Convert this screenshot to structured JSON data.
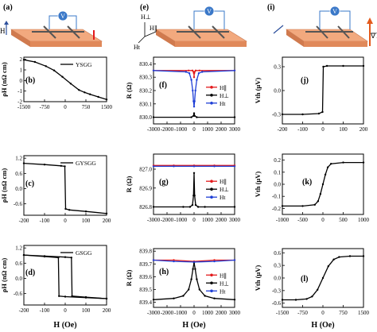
{
  "figure": {
    "panel_letters": [
      "(a)",
      "(b)",
      "(c)",
      "(d)",
      "(e)",
      "(f)",
      "(g)",
      "(h)",
      "(i)",
      "(j)",
      "(k)",
      "(l)"
    ],
    "diagrams": {
      "a": {
        "field_label": "H"
      },
      "e": {
        "field_labels": [
          "H⊥",
          "H∥",
          "Ht"
        ]
      },
      "i": {
        "gradient_label": "∇T"
      }
    },
    "xlabels": {
      "col1": "H (Oe)",
      "col2": "H (Oe)",
      "col3": "H (Oe)"
    }
  },
  "chart_data": [
    {
      "id": "b",
      "type": "line",
      "ylabel": "ρH (nΩ cm)",
      "xlim": [
        -1500,
        1500
      ],
      "ylim": [
        -2.0,
        2.2
      ],
      "xticks": [
        "-1500",
        "-750",
        "0",
        "750",
        "1500"
      ],
      "yticks": [
        "2",
        "1",
        "0",
        "-1",
        "-2"
      ],
      "legend": "top-right",
      "series": [
        {
          "name": "YSGG",
          "color": "#000000",
          "x": [
            -1500,
            -1100,
            -700,
            -400,
            -100,
            200,
            500,
            700,
            900,
            1200,
            1500
          ],
          "y": [
            1.95,
            1.75,
            1.35,
            0.95,
            0.35,
            -0.3,
            -0.9,
            -1.12,
            -1.3,
            -1.55,
            -1.8
          ]
        }
      ]
    },
    {
      "id": "c",
      "type": "line",
      "ylabel": "ρH (nΩ cm)",
      "xlim": [
        -200,
        200
      ],
      "ylim": [
        -1.05,
        1.3
      ],
      "xticks": [
        "-200",
        "-100",
        "0",
        "100",
        "200"
      ],
      "yticks": [
        "1.2",
        "0.6",
        "0.0",
        "-0.6"
      ],
      "legend": "top-right",
      "series": [
        {
          "name": "GYSGG",
          "color": "#000000",
          "x": [
            -200,
            -100,
            -20,
            -2,
            2,
            20,
            100,
            200
          ],
          "y": [
            1.0,
            0.95,
            0.9,
            0.88,
            -0.8,
            -0.84,
            -0.9,
            -0.98
          ]
        }
      ]
    },
    {
      "id": "d",
      "type": "line",
      "ylabel": "ρH (nΩ cm)",
      "xlim": [
        -200,
        200
      ],
      "ylim": [
        -1.05,
        1.3
      ],
      "xticks": [
        "-200",
        "-100",
        "0",
        "100",
        "200"
      ],
      "yticks": [
        "1.2",
        "0.6",
        "0.0",
        "-0.6"
      ],
      "legend": "top-right",
      "series": [
        {
          "name": "GSGG",
          "color": "#000000",
          "x": [
            -200,
            -100,
            0,
            30,
            33,
            100,
            200
          ],
          "y": [
            0.92,
            0.88,
            0.84,
            0.82,
            -0.7,
            -0.74,
            -0.8
          ]
        },
        {
          "name": "",
          "color": "#000000",
          "x": [
            200,
            100,
            0,
            -30,
            -33,
            -100,
            -200
          ],
          "y": [
            -0.8,
            -0.76,
            -0.72,
            -0.7,
            0.82,
            0.86,
            0.92
          ]
        }
      ]
    },
    {
      "id": "f",
      "type": "line",
      "ylabel": "R (Ω)",
      "xlim": [
        -3000,
        3000
      ],
      "ylim": [
        829.95,
        830.45
      ],
      "xticks": [
        "-3000",
        "-2000",
        "-1000",
        "0",
        "1000",
        "2000",
        "3000"
      ],
      "yticks": [
        "830.4",
        "830.3",
        "830.2",
        "830.1",
        "830.0"
      ],
      "legend": "right",
      "series": [
        {
          "name": "H∥",
          "color": "#e31a1c",
          "x": [
            -3000,
            -400,
            -120,
            -40,
            -10,
            0,
            10,
            40,
            120,
            400,
            3000
          ],
          "y": [
            830.35,
            830.35,
            830.35,
            830.34,
            830.33,
            830.3,
            830.33,
            830.34,
            830.35,
            830.35,
            830.35
          ]
        },
        {
          "name": "H⊥",
          "color": "#000000",
          "x": [
            -3000,
            -200,
            -50,
            0,
            50,
            200,
            3000
          ],
          "y": [
            830.0,
            830.0,
            830.01,
            830.03,
            830.01,
            830.0,
            830.0
          ]
        },
        {
          "name": "Ht",
          "color": "#1f3fd6",
          "x": [
            -3000,
            -600,
            -350,
            -200,
            -100,
            -40,
            0,
            40,
            100,
            200,
            350,
            600,
            3000
          ],
          "y": [
            830.35,
            830.34,
            830.33,
            830.28,
            830.2,
            830.12,
            830.08,
            830.12,
            830.2,
            830.28,
            830.33,
            830.34,
            830.35
          ]
        }
      ]
    },
    {
      "id": "g",
      "type": "line",
      "ylabel": "R (Ω)",
      "xlim": [
        -3000,
        3000
      ],
      "ylim": [
        826.76,
        827.08
      ],
      "xticks": [
        "-3000",
        "-2000",
        "-1000",
        "0",
        "1000",
        "2000",
        "3000"
      ],
      "yticks": [
        "827.0",
        "826.9",
        "826.8"
      ],
      "legend": "right",
      "series": [
        {
          "name": "H∥",
          "color": "#e31a1c",
          "x": [
            -3000,
            -1500,
            0,
            1500,
            3000
          ],
          "y": [
            827.02,
            827.02,
            827.02,
            827.02,
            827.02
          ]
        },
        {
          "name": "H⊥",
          "color": "#000000",
          "x": [
            -3000,
            -800,
            -300,
            -120,
            -40,
            0,
            40,
            120,
            300,
            800,
            3000
          ],
          "y": [
            826.8,
            826.8,
            826.8,
            826.81,
            826.86,
            826.98,
            826.86,
            826.81,
            826.8,
            826.8,
            826.8
          ]
        },
        {
          "name": "Ht",
          "color": "#1f3fd6",
          "x": [
            -3000,
            -1500,
            0,
            1500,
            3000
          ],
          "y": [
            827.015,
            827.015,
            827.015,
            827.015,
            827.015
          ]
        }
      ]
    },
    {
      "id": "h",
      "type": "line",
      "ylabel": "R (Ω)",
      "xlim": [
        -3000,
        3000
      ],
      "ylim": [
        839.36,
        839.82
      ],
      "xticks": [
        "-3000",
        "-2000",
        "-1000",
        "0",
        "1000",
        "2000",
        "3000"
      ],
      "yticks": [
        "839.8",
        "839.7",
        "839.6",
        "839.5",
        "839.4"
      ],
      "legend": "right",
      "series": [
        {
          "name": "H∥",
          "color": "#e31a1c",
          "x": [
            -3000,
            -1500,
            0,
            1500,
            3000
          ],
          "y": [
            839.73,
            839.73,
            839.72,
            839.73,
            839.73
          ]
        },
        {
          "name": "H⊥",
          "color": "#000000",
          "x": [
            -3000,
            -1500,
            -800,
            -400,
            -200,
            -80,
            0,
            80,
            200,
            400,
            800,
            1500,
            3000
          ],
          "y": [
            839.42,
            839.43,
            839.45,
            839.5,
            839.58,
            839.66,
            839.71,
            839.66,
            839.58,
            839.5,
            839.45,
            839.43,
            839.42
          ]
        },
        {
          "name": "Ht",
          "color": "#1f3fd6",
          "x": [
            -3000,
            -1500,
            0,
            1500,
            3000
          ],
          "y": [
            839.73,
            839.72,
            839.715,
            839.72,
            839.73
          ]
        }
      ]
    },
    {
      "id": "j",
      "type": "line",
      "ylabel": "Vth (μV)",
      "xlim": [
        -200,
        200
      ],
      "ylim": [
        -0.42,
        0.42
      ],
      "xticks": [
        "-200",
        "-100",
        "0",
        "100",
        "200"
      ],
      "yticks": [
        "0.3",
        "0.0",
        "-0.3"
      ],
      "legend": "none",
      "series": [
        {
          "name": "",
          "color": "#000000",
          "x": [
            -200,
            -100,
            -20,
            -2,
            2,
            20,
            100,
            200
          ],
          "y": [
            -0.3,
            -0.3,
            -0.29,
            -0.27,
            0.3,
            0.31,
            0.31,
            0.31
          ]
        }
      ]
    },
    {
      "id": "k",
      "type": "line",
      "ylabel": "Vth (μV)",
      "xlim": [
        -1000,
        1000
      ],
      "ylim": [
        -0.25,
        0.25
      ],
      "xticks": [
        "-1000",
        "-500",
        "0",
        "500",
        "1000"
      ],
      "yticks": [
        "0.2",
        "0.1",
        "0.0",
        "-0.1",
        "-0.2"
      ],
      "legend": "none",
      "series": [
        {
          "name": "",
          "color": "#000000",
          "x": [
            -1000,
            -500,
            -200,
            -120,
            -60,
            0,
            60,
            120,
            200,
            500,
            1000
          ],
          "y": [
            -0.18,
            -0.18,
            -0.17,
            -0.14,
            -0.08,
            0.0,
            0.08,
            0.14,
            0.17,
            0.18,
            0.18
          ]
        }
      ]
    },
    {
      "id": "l",
      "type": "line",
      "ylabel": "Vth (μV)",
      "xlim": [
        -1500,
        1500
      ],
      "ylim": [
        -0.7,
        0.7
      ],
      "xticks": [
        "-1500",
        "-750",
        "0",
        "750",
        "1500"
      ],
      "yticks": [
        "0.6",
        "0.3",
        "0.0",
        "-0.3",
        "-0.6"
      ],
      "legend": "none",
      "series": [
        {
          "name": "",
          "color": "#000000",
          "x": [
            -1500,
            -1000,
            -600,
            -400,
            -200,
            0,
            200,
            400,
            600,
            1000,
            1500
          ],
          "y": [
            -0.52,
            -0.52,
            -0.5,
            -0.44,
            -0.28,
            0.0,
            0.28,
            0.44,
            0.5,
            0.52,
            0.52
          ]
        }
      ]
    }
  ]
}
